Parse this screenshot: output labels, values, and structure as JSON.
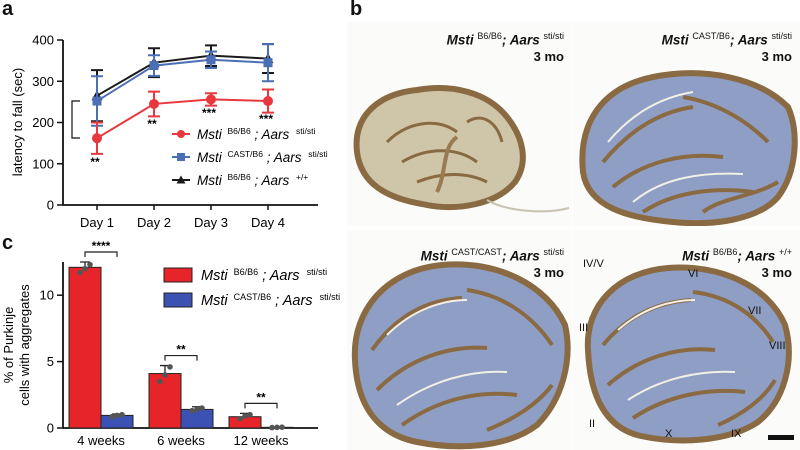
{
  "panels": {
    "a": "a",
    "b": "b",
    "c": "c"
  },
  "chart_data": [
    {
      "type": "line",
      "categories": [
        "Day 1",
        "Day 2",
        "Day 3",
        "Day 4"
      ],
      "ylabel": "latency to fall (sec)",
      "ylim": [
        0,
        400
      ],
      "yticks": [
        "0",
        "100",
        "200",
        "300",
        "400"
      ],
      "series": [
        {
          "genotype": "Msti",
          "strain": "B6/B6",
          "gene": "Aars",
          "allele": "sti/sti",
          "color": "#e8383d",
          "marker": "circle",
          "values": [
            162,
            245,
            256,
            252
          ],
          "errors": [
            38,
            30,
            15,
            28
          ]
        },
        {
          "genotype": "Msti",
          "strain": "CAST/B6",
          "gene": "Aars",
          "allele": "sti/sti",
          "color": "#4a6fb5",
          "marker": "square",
          "values": [
            252,
            338,
            352,
            345
          ],
          "errors": [
            60,
            25,
            20,
            45
          ]
        },
        {
          "genotype": "Msti",
          "strain": "B6/B6",
          "gene": "Aars",
          "allele": "+/+",
          "color": "#1a1a1a",
          "marker": "triangle",
          "values": [
            265,
            345,
            362,
            355
          ],
          "errors": [
            62,
            35,
            25,
            35
          ]
        }
      ],
      "significance": [
        "**",
        "**",
        "***",
        "***"
      ]
    },
    {
      "type": "bar",
      "categories": [
        "4 weeks",
        "6 weeks",
        "12 weeks"
      ],
      "ylabel_line1": "% of Purkinje",
      "ylabel_line2": "cells with aggregates",
      "ylim": [
        0,
        12.5
      ],
      "yticks": [
        "0",
        "5",
        "10"
      ],
      "series": [
        {
          "genotype": "Msti",
          "strain": "B6/B6",
          "gene": "Aars",
          "allele": "sti/sti",
          "color": "#e8242b",
          "values": [
            12.1,
            4.1,
            0.85
          ],
          "errors": [
            0.4,
            0.6,
            0.25
          ],
          "points": [
            [
              11.7,
              12.0,
              12.3
            ],
            [
              3.5,
              4.0,
              4.6
            ],
            [
              0.7,
              0.9,
              1.0
            ]
          ]
        },
        {
          "genotype": "Msti",
          "strain": "CAST/B6",
          "gene": "Aars",
          "allele": "sti/sti",
          "color": "#3b52b4",
          "values": [
            0.95,
            1.4,
            0.05
          ],
          "errors": [
            0.1,
            0.2,
            0.02
          ],
          "points": [
            [
              0.85,
              0.95,
              1.0
            ],
            [
              1.3,
              1.4,
              1.5
            ],
            [
              0.03,
              0.05,
              0.06
            ]
          ]
        }
      ],
      "significance": [
        "****",
        "**",
        "**"
      ]
    }
  ],
  "images": [
    {
      "genotype": "Msti",
      "strain": "B6/B6",
      "gene": "Aars",
      "allele": "sti/sti",
      "age": "3 mo",
      "stained": false
    },
    {
      "genotype": "Msti",
      "strain": "CAST/B6",
      "gene": "Aars",
      "allele": "sti/sti",
      "age": "3 mo",
      "stained": true
    },
    {
      "genotype": "Msti",
      "strain": "CAST/CAST",
      "gene": "Aars",
      "allele": "sti/sti",
      "age": "3 mo",
      "stained": true
    },
    {
      "genotype": "Msti",
      "strain": "B6/B6",
      "gene": "Aars",
      "allele": "+/+",
      "age": "3 mo",
      "stained": true,
      "lobules": [
        "IV/V",
        "VI",
        "VII",
        "III",
        "VIII",
        "II",
        "X",
        "IX"
      ]
    }
  ],
  "colors": {
    "tissue_brown": "#8a6a42",
    "tissue_tan": "#d8cfb6",
    "tissue_blue": "#8e9ec4",
    "scale_bar": "#111111"
  }
}
